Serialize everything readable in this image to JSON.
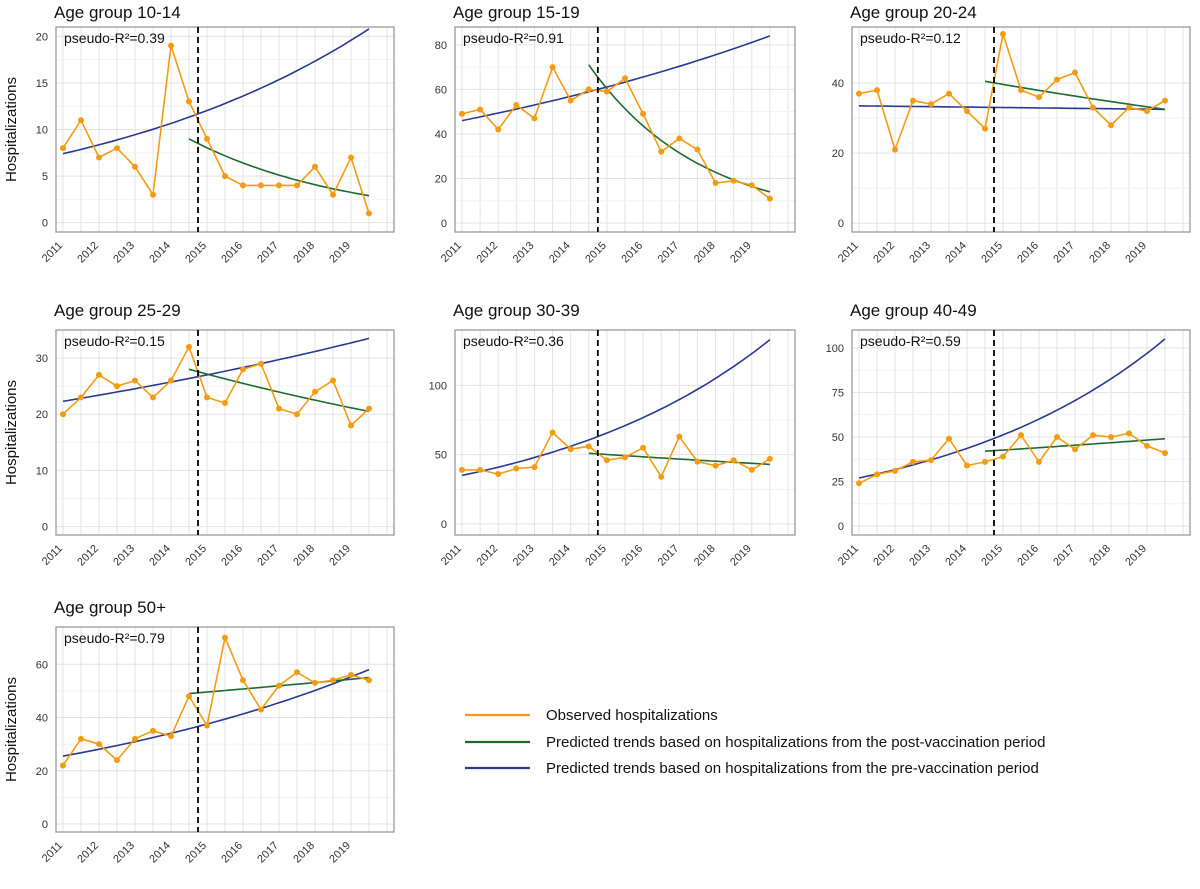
{
  "chart_data": {
    "type": "line",
    "y_axis_label": "Hospitalizations",
    "x_tick_labels": [
      "2011",
      "2012",
      "2013",
      "2014",
      "2015",
      "2016",
      "2017",
      "2018",
      "2019"
    ],
    "x_range": [
      0,
      18
    ],
    "intervention_at": 7.5,
    "colors": {
      "observed": "#F39C12",
      "post": "#1E6B2F",
      "pre": "#2B3990",
      "vline": "#000000",
      "grid": "#E3E3E3",
      "frame": "#9A9A9A"
    },
    "legend": {
      "observed": "Observed hospitalizations",
      "post": "Predicted trends based on hospitalizations from the post-vaccination period",
      "pre": "Predicted trends based on hospitalizations from the pre-vaccination period"
    },
    "panels": [
      {
        "title": "Age group 10-14",
        "r2": "pseudo-R²=0.39",
        "ylim": [
          -1,
          21
        ],
        "yticks": [
          0,
          5,
          10,
          15,
          20
        ],
        "observed": [
          8,
          11,
          7,
          8,
          6,
          3,
          19,
          13,
          9,
          5,
          4,
          4,
          4,
          4,
          6,
          3,
          7,
          1
        ],
        "pre": [
          7.4,
          20.8
        ],
        "post": [
          9.0,
          2.9
        ]
      },
      {
        "title": "Age group 15-19",
        "r2": "pseudo-R²=0.91",
        "ylim": [
          -4,
          88
        ],
        "yticks": [
          0,
          20,
          40,
          60,
          80
        ],
        "observed": [
          49,
          51,
          42,
          53,
          47,
          70,
          55,
          60,
          59,
          65,
          49,
          32,
          38,
          33,
          18,
          19,
          17,
          11
        ],
        "pre": [
          46,
          84
        ],
        "post": [
          71,
          14
        ]
      },
      {
        "title": "Age group 20-24",
        "r2": "pseudo-R²=0.12",
        "ylim": [
          -2.5,
          56
        ],
        "yticks": [
          0,
          20,
          40
        ],
        "observed": [
          37,
          38,
          21,
          35,
          34,
          37,
          32,
          27,
          54,
          38,
          36,
          41,
          43,
          33,
          28,
          33,
          32,
          35
        ],
        "pre": [
          33.5,
          32.5
        ],
        "post": [
          40.5,
          32.5
        ]
      },
      {
        "title": "Age group 25-29",
        "r2": "pseudo-R²=0.15",
        "ylim": [
          -1.5,
          35
        ],
        "yticks": [
          0,
          10,
          20,
          30
        ],
        "observed": [
          20,
          23,
          27,
          25,
          26,
          23,
          26,
          32,
          23,
          22,
          28,
          29,
          21,
          20,
          24,
          26,
          18,
          21
        ],
        "pre": [
          22.3,
          33.5
        ],
        "post": [
          28,
          20.5
        ]
      },
      {
        "title": "Age group 30-39",
        "r2": "pseudo-R²=0.36",
        "ylim": [
          -8,
          140
        ],
        "yticks": [
          0,
          50,
          100
        ],
        "observed": [
          39,
          39,
          36,
          40,
          41,
          66,
          54,
          56,
          46,
          48,
          55,
          34,
          63,
          45,
          42,
          46,
          39,
          47
        ],
        "pre": [
          35,
          133
        ],
        "post": [
          51,
          43
        ]
      },
      {
        "title": "Age group 40-49",
        "r2": "pseudo-R²=0.59",
        "ylim": [
          -5,
          110
        ],
        "yticks": [
          0,
          25,
          50,
          75,
          100
        ],
        "observed": [
          24,
          29,
          31,
          36,
          37,
          49,
          34,
          36,
          39,
          51,
          36,
          50,
          43,
          51,
          50,
          52,
          45,
          41
        ],
        "pre": [
          27,
          105
        ],
        "post": [
          42,
          49
        ]
      },
      {
        "title": "Age group 50+",
        "r2": "pseudo-R²=0.79",
        "ylim": [
          -3,
          74
        ],
        "yticks": [
          0,
          20,
          40,
          60
        ],
        "observed": [
          22,
          32,
          30,
          24,
          32,
          35,
          33,
          48,
          37,
          70,
          54,
          43,
          52,
          57,
          53,
          54,
          56,
          54
        ],
        "pre": [
          25.5,
          58
        ],
        "post": [
          49,
          55
        ]
      }
    ]
  }
}
